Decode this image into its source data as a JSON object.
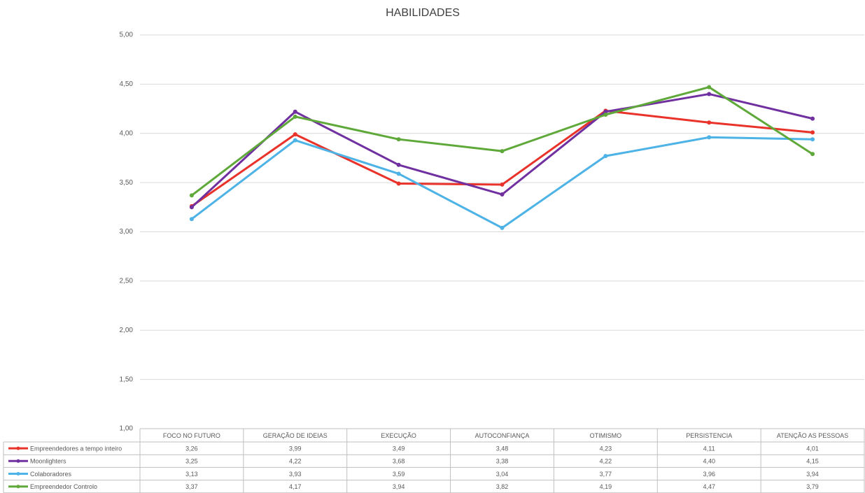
{
  "chart_data": {
    "type": "line",
    "title": "HABILIDADES",
    "categories": [
      "FOCO NO FUTURO",
      "GERAÇÃO DE IDEIAS",
      "EXECUÇÃO",
      "AUTOCONFIANÇA",
      "OTIMISMO",
      "PERSISTENCIA",
      "ATENÇÃO AS PESSOAS"
    ],
    "series": [
      {
        "name": "Empreendedores a tempo inteiro",
        "color": "#e8322a",
        "values": [
          3.26,
          3.99,
          3.49,
          3.48,
          4.23,
          4.11,
          4.01
        ],
        "value_labels": [
          "3,26",
          "3,99",
          "3,49",
          "3,48",
          "4,23",
          "4,11",
          "4,01"
        ]
      },
      {
        "name": "Moonlighters",
        "color": "#7030a0",
        "values": [
          3.25,
          4.22,
          3.68,
          3.38,
          4.22,
          4.4,
          4.15
        ],
        "value_labels": [
          "3,25",
          "4,22",
          "3,68",
          "3,38",
          "4,22",
          "4,40",
          "4,15"
        ]
      },
      {
        "name": "Colaboradores",
        "color": "#4db3e6",
        "values": [
          3.13,
          3.93,
          3.59,
          3.04,
          3.77,
          3.96,
          3.94
        ],
        "value_labels": [
          "3,13",
          "3,93",
          "3,59",
          "3,04",
          "3,77",
          "3,96",
          "3,94"
        ]
      },
      {
        "name": "Empreendedor Controlo",
        "color": "#5fa83a",
        "values": [
          3.37,
          4.17,
          3.94,
          3.82,
          4.19,
          4.47,
          3.79
        ],
        "value_labels": [
          "3,37",
          "4,17",
          "3,94",
          "3,82",
          "4,19",
          "4,47",
          "3,79"
        ]
      }
    ],
    "ylim": [
      1,
      5
    ],
    "yticks": [
      {
        "value": 1,
        "label": "1,00"
      },
      {
        "value": 1.5,
        "label": "1,50"
      },
      {
        "value": 2,
        "label": "2,00"
      },
      {
        "value": 2.5,
        "label": "2,50"
      },
      {
        "value": 3,
        "label": "3,00"
      },
      {
        "value": 3.5,
        "label": "3,50"
      },
      {
        "value": 4,
        "label": "4,00"
      },
      {
        "value": 4.5,
        "label": "4,50"
      },
      {
        "value": 5,
        "label": "5,00"
      }
    ],
    "grid": true
  }
}
